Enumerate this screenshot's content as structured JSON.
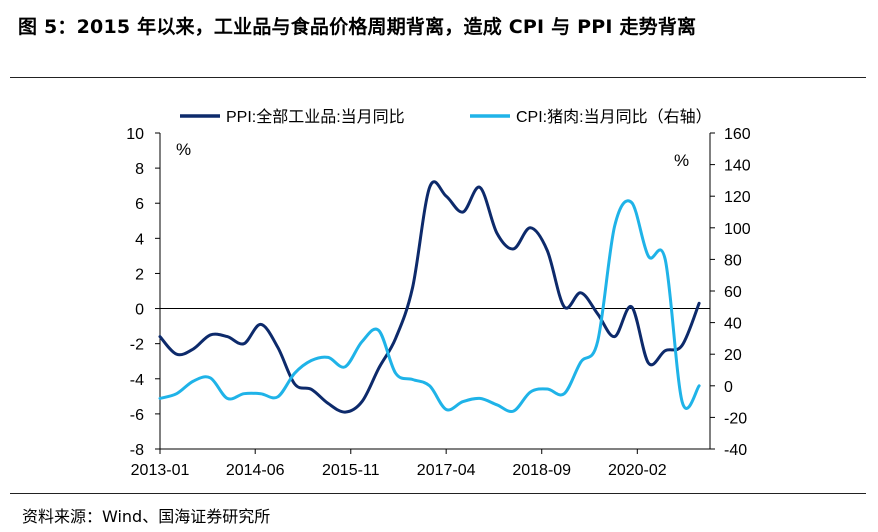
{
  "figure": {
    "title": "图 5：2015 年以来，工业品与食品价格周期背离，造成 CPI 与 PPI 走势背离",
    "source": "资料来源：Wind、国海证券研究所"
  },
  "chart_data": {
    "type": "line",
    "x_tick_labels": [
      "2013-01",
      "2014-06",
      "2015-11",
      "2017-04",
      "2018-09",
      "2020-02"
    ],
    "left_axis": {
      "unit": "%",
      "ylim": [
        -8,
        10
      ],
      "ticks": [
        10,
        8,
        6,
        4,
        2,
        0,
        -2,
        -4,
        -6,
        -8
      ]
    },
    "right_axis": {
      "unit": "%",
      "ylim": [
        -40,
        160
      ],
      "ticks": [
        160,
        140,
        120,
        100,
        80,
        60,
        40,
        20,
        0,
        -20,
        -40
      ]
    },
    "baseline": 0,
    "legend_position": "top",
    "series": [
      {
        "name": "PPI:全部工业品:当月同比",
        "axis": "left",
        "color": "#0d2a6b",
        "x": [
          "2013-01",
          "2013-04",
          "2013-07",
          "2013-10",
          "2014-01",
          "2014-04",
          "2014-07",
          "2014-10",
          "2015-01",
          "2015-04",
          "2015-07",
          "2015-10",
          "2016-01",
          "2016-04",
          "2016-07",
          "2016-10",
          "2017-01",
          "2017-04",
          "2017-07",
          "2017-10",
          "2018-01",
          "2018-04",
          "2018-07",
          "2018-10",
          "2019-01",
          "2019-04",
          "2019-07",
          "2019-10",
          "2020-01",
          "2020-04",
          "2020-07",
          "2020-10",
          "2021-01"
        ],
        "values": [
          -1.6,
          -2.6,
          -2.3,
          -1.5,
          -1.6,
          -2.0,
          -0.9,
          -2.2,
          -4.3,
          -4.6,
          -5.4,
          -5.9,
          -5.3,
          -3.4,
          -1.7,
          1.2,
          6.9,
          6.4,
          5.5,
          6.9,
          4.3,
          3.4,
          4.6,
          3.3,
          0.1,
          0.9,
          -0.3,
          -1.6,
          0.1,
          -3.1,
          -2.4,
          -2.1,
          0.3
        ]
      },
      {
        "name": "CPI:猪肉:当月同比（右轴）",
        "axis": "right",
        "color": "#1fb3e8",
        "x": [
          "2013-01",
          "2013-04",
          "2013-07",
          "2013-10",
          "2014-01",
          "2014-04",
          "2014-07",
          "2014-10",
          "2015-01",
          "2015-04",
          "2015-07",
          "2015-10",
          "2016-01",
          "2016-04",
          "2016-07",
          "2016-10",
          "2017-01",
          "2017-04",
          "2017-07",
          "2017-10",
          "2018-01",
          "2018-04",
          "2018-07",
          "2018-10",
          "2019-01",
          "2019-04",
          "2019-07",
          "2019-10",
          "2020-01",
          "2020-04",
          "2020-07",
          "2020-10",
          "2021-01"
        ],
        "values": [
          -8,
          -5,
          3,
          5,
          -8,
          -5,
          -5,
          -7,
          8,
          16,
          18,
          12,
          28,
          35,
          8,
          4,
          0,
          -15,
          -10,
          -8,
          -12,
          -16,
          -4,
          -2,
          -5,
          15,
          28,
          101,
          116,
          82,
          80,
          -10,
          0
        ]
      }
    ]
  }
}
